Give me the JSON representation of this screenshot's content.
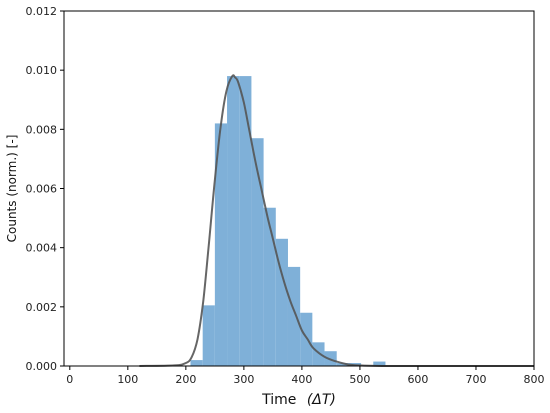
{
  "chart_data": {
    "type": "bar",
    "xlabel": "Time",
    "xlabel_symbol": "(ΔT)",
    "ylabel": "Counts (norm.) [-]",
    "xlim": [
      -10,
      800
    ],
    "ylim": [
      0,
      0.012
    ],
    "xticks": [
      0,
      100,
      200,
      300,
      400,
      500,
      600,
      700,
      800
    ],
    "xtick_labels": [
      "0",
      "100",
      "200",
      "300",
      "400",
      "500",
      "600",
      "700",
      "800"
    ],
    "yticks": [
      0,
      0.002,
      0.004,
      0.006,
      0.008,
      0.01,
      0.012
    ],
    "ytick_labels": [
      "0.000",
      "0.002",
      "0.004",
      "0.006",
      "0.008",
      "0.010",
      "0.012"
    ],
    "grid": false,
    "bar_color": "#7fb0d8",
    "curve_color": "#555555",
    "bin_width": 21,
    "bins": [
      {
        "x": 208,
        "value": 0.0002
      },
      {
        "x": 229,
        "value": 0.00205
      },
      {
        "x": 250,
        "value": 0.0082
      },
      {
        "x": 271,
        "value": 0.0098
      },
      {
        "x": 292,
        "value": 0.0098
      },
      {
        "x": 313,
        "value": 0.0077
      },
      {
        "x": 334,
        "value": 0.00535
      },
      {
        "x": 355,
        "value": 0.0043
      },
      {
        "x": 376,
        "value": 0.00335
      },
      {
        "x": 397,
        "value": 0.0018
      },
      {
        "x": 418,
        "value": 0.0008
      },
      {
        "x": 439,
        "value": 0.0005
      },
      {
        "x": 460,
        "value": 0.0001
      },
      {
        "x": 481,
        "value": 0.0001
      },
      {
        "x": 523,
        "value": 0.00015
      }
    ],
    "curve": {
      "x": [
        120,
        180,
        200,
        210,
        220,
        230,
        240,
        250,
        260,
        270,
        280,
        285,
        290,
        300,
        310,
        320,
        330,
        340,
        350,
        360,
        370,
        380,
        390,
        400,
        410,
        420,
        440,
        460,
        480,
        500,
        540,
        600,
        700,
        800
      ],
      "y": [
        0,
        2e-05,
        0.0001,
        0.0003,
        0.0009,
        0.0022,
        0.0042,
        0.0063,
        0.0081,
        0.0093,
        0.0098,
        0.00975,
        0.0096,
        0.0089,
        0.0079,
        0.0069,
        0.006,
        0.0051,
        0.0043,
        0.0035,
        0.0028,
        0.0022,
        0.0017,
        0.0012,
        0.0009,
        0.0006,
        0.0003,
        0.00015,
        5e-05,
        2e-05,
        0,
        0,
        0,
        0
      ]
    }
  }
}
